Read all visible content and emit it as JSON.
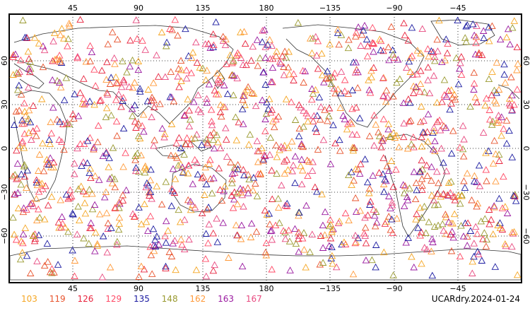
{
  "map": {
    "top_lon_labels": [
      "45",
      "90",
      "135",
      "180",
      "−135",
      "−90",
      "−45"
    ],
    "bottom_lon_labels": [
      "45",
      "90",
      "135",
      "180",
      "−135",
      "−90",
      "−45"
    ],
    "left_lat_labels": [
      "60",
      "30",
      "0",
      "−30",
      "−60"
    ],
    "right_lat_labels": [
      "60",
      "30",
      "0",
      "−30",
      "−60"
    ],
    "marker": "triangle",
    "colors": [
      "#f5a623",
      "#e8542e",
      "#e8253f",
      "#ff4a66",
      "#1a1aa0",
      "#9a9a30",
      "#ff9a3a",
      "#9a1aa0",
      "#e84a80"
    ]
  },
  "legend": {
    "items": [
      {
        "label": "103",
        "color": "#f5a623"
      },
      {
        "label": "119",
        "color": "#e8542e"
      },
      {
        "label": "126",
        "color": "#e8253f"
      },
      {
        "label": "129",
        "color": "#ff4a66"
      },
      {
        "label": "135",
        "color": "#1a1aa0"
      },
      {
        "label": "148",
        "color": "#9a9a30"
      },
      {
        "label": "162",
        "color": "#ff9a3a"
      },
      {
        "label": "163",
        "color": "#9a1aa0"
      },
      {
        "label": "167",
        "color": "#e84a80"
      }
    ]
  },
  "stamp": "UCARdry.2024-01-24"
}
